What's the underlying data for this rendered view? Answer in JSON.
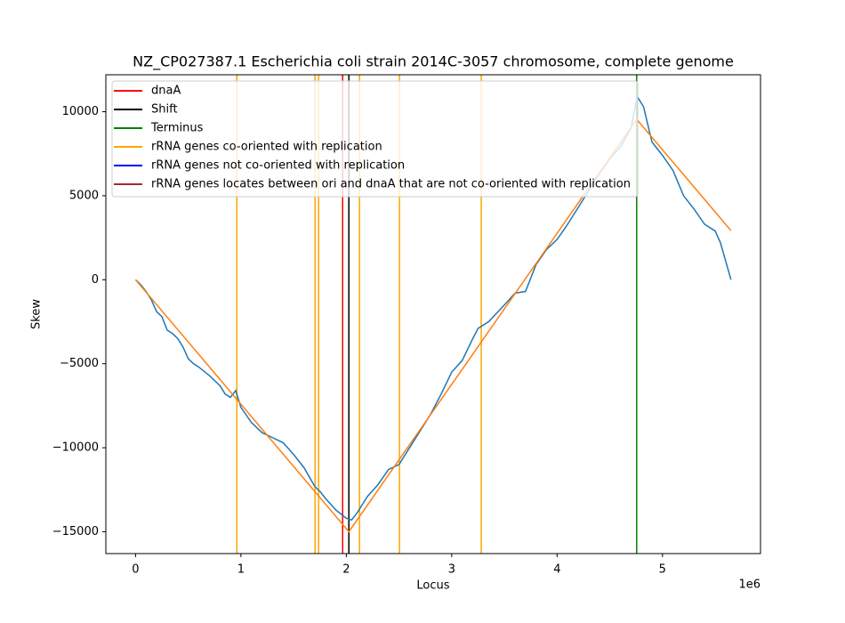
{
  "chart_data": {
    "type": "line",
    "title": "NZ_CP027387.1 Escherichia coli strain 2014C-3057 chromosome, complete genome",
    "xlabel": "Locus",
    "ylabel": "Skew",
    "x_offset_label": "1e6",
    "xlim": [
      -282000,
      5930000
    ],
    "ylim": [
      -16300,
      12200
    ],
    "xticks": [
      0,
      {
        "value": 1000000,
        "label": "1"
      },
      {
        "value": 2000000,
        "label": "2"
      },
      {
        "value": 3000000,
        "label": "3"
      },
      {
        "value": 4000000,
        "label": "4"
      },
      {
        "value": 5000000,
        "label": "5"
      }
    ],
    "yticks": [
      {
        "value": -15000,
        "label": "−15000"
      },
      {
        "value": -10000,
        "label": "−10000"
      },
      {
        "value": -5000,
        "label": "−5000"
      },
      0,
      5000,
      10000
    ],
    "legend": "upper left",
    "lines": [
      {
        "color": "#1f77b4",
        "x": [
          0,
          50000,
          100000,
          150000,
          200000,
          250000,
          300000,
          350000,
          400000,
          450000,
          500000,
          550000,
          600000,
          700000,
          800000,
          850000,
          900000,
          950000,
          1000000,
          1100000,
          1200000,
          1300000,
          1400000,
          1500000,
          1600000,
          1700000,
          1750000,
          1800000,
          1900000,
          2000000,
          2050000,
          2100000,
          2200000,
          2300000,
          2400000,
          2500000,
          2600000,
          2700000,
          2800000,
          2900000,
          3000000,
          3100000,
          3200000,
          3250000,
          3350000,
          3500000,
          3600000,
          3700000,
          3800000,
          3900000,
          4000000,
          4100000,
          4200000,
          4300000,
          4400000,
          4500000,
          4600000,
          4700000,
          4760000,
          4820000,
          4900000,
          5000000,
          5100000,
          5200000,
          5300000,
          5400000,
          5500000,
          5550000,
          5600000,
          5650000
        ],
        "values": [
          0,
          -300,
          -700,
          -1200,
          -1900,
          -2200,
          -3000,
          -3200,
          -3500,
          -4000,
          -4700,
          -5000,
          -5200,
          -5700,
          -6300,
          -6800,
          -7000,
          -6600,
          -7600,
          -8500,
          -9100,
          -9400,
          -9700,
          -10400,
          -11200,
          -12300,
          -12600,
          -13000,
          -13700,
          -14200,
          -14300,
          -13900,
          -12900,
          -12200,
          -11300,
          -11000,
          -10000,
          -9000,
          -8000,
          -6800,
          -5500,
          -4800,
          -3500,
          -2900,
          -2500,
          -1500,
          -800,
          -700,
          900,
          1800,
          2400,
          3300,
          4300,
          5300,
          6300,
          7200,
          7900,
          9000,
          10900,
          10300,
          8200,
          7400,
          6500,
          5000,
          4200,
          3300,
          2900,
          2200,
          1100,
          0
        ]
      },
      {
        "color": "#ff7f0e",
        "x": [
          0,
          2024000,
          4755000,
          5650000
        ],
        "values": [
          0,
          -15000,
          9550,
          2920
        ]
      }
    ],
    "vlines": [
      {
        "name": "dnaA",
        "color": "#ff0000",
        "x": [
          1965000
        ]
      },
      {
        "name": "Shift",
        "color": "#000000",
        "x": [
          2024000
        ]
      },
      {
        "name": "Terminus",
        "color": "#008000",
        "x": [
          4755000
        ]
      },
      {
        "name": "rRNA genes co-oriented with replication",
        "color": "#ffa500",
        "x": [
          961000,
          1703000,
          1737000,
          2125000,
          2504000,
          3280000
        ]
      },
      {
        "name": "rRNA genes not co-oriented with replication",
        "color": "#0000ff",
        "x": []
      },
      {
        "name": "rRNA genes locates between ori and dnaA that are not co-oriented with replication",
        "color": "#a52a2a",
        "x": []
      }
    ]
  }
}
